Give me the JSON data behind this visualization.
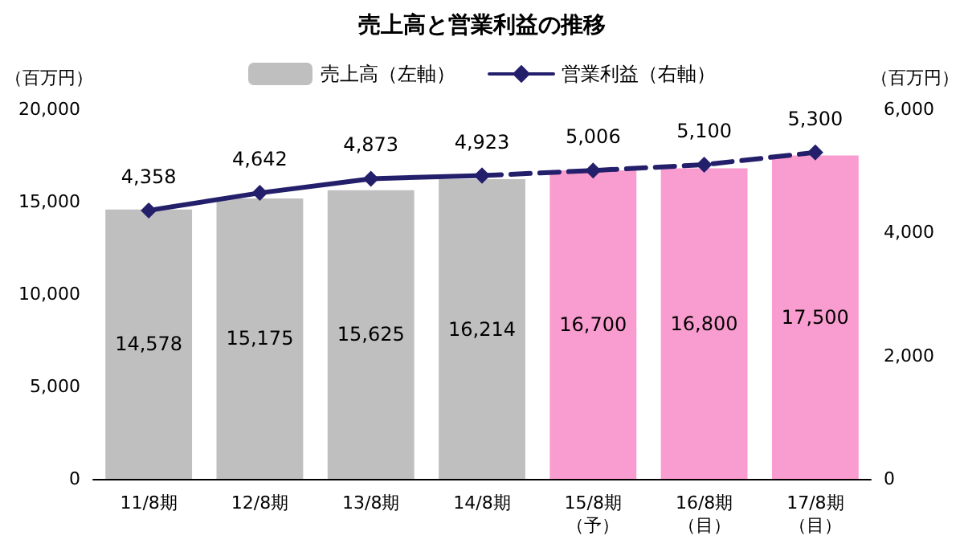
{
  "chart_data": {
    "type": "bar",
    "title": "売上高と営業利益の推移",
    "ylabel": "（百万円）",
    "y2label": "（百万円）",
    "categories": [
      "11/8期",
      "12/8期",
      "13/8期",
      "14/8期",
      "15/8期（予）",
      "16/8期（目）",
      "17/8期（目）"
    ],
    "series": [
      {
        "name": "売上高（左軸）",
        "color": "#bfbfbf",
        "colors": [
          "#bfbfbf",
          "#bfbfbf",
          "#bfbfbf",
          "#bfbfbf",
          "#f99ccf",
          "#f99ccf",
          "#f99ccf"
        ],
        "values": [
          14578,
          15175,
          15625,
          16214,
          16700,
          16800,
          17500
        ],
        "value_labels": [
          "14,578",
          "15,175",
          "15,625",
          "16,214",
          "16,700",
          "16,800",
          "17,500"
        ]
      },
      {
        "name": "営業利益（右軸）",
        "type": "line",
        "axis": "y2",
        "color": "#241f6b",
        "line_style": "solid",
        "marker": "diamond",
        "values": [
          4358,
          4642,
          4873,
          4923,
          null,
          null,
          null
        ],
        "value_labels": [
          "4,358",
          "4,642",
          "4,873",
          "4,923",
          null,
          null,
          null
        ]
      },
      {
        "type": "line",
        "axis": "y2",
        "color": "#241f6b",
        "line_style": "dashed",
        "marker": "diamond",
        "values": [
          null,
          null,
          null,
          4923,
          5006,
          5100,
          5300
        ],
        "value_labels": [
          null,
          null,
          null,
          null,
          "5,006",
          "5,100",
          "5,300"
        ]
      }
    ],
    "ylim": [
      0,
      20000
    ],
    "yticks": [
      {
        "value": 0,
        "label": "0"
      },
      {
        "value": 5000,
        "label": "5,000"
      },
      {
        "value": 10000,
        "label": "10,000"
      },
      {
        "value": 15000,
        "label": "15,000"
      },
      {
        "value": 20000,
        "label": "20,000"
      }
    ],
    "y2lim": [
      0,
      6000
    ],
    "y2ticks": [
      {
        "value": 0,
        "label": "0"
      },
      {
        "value": 2000,
        "label": "2,000"
      },
      {
        "value": 4000,
        "label": "4,000"
      },
      {
        "value": 6000,
        "label": "6,000"
      }
    ],
    "grid": false,
    "legend": "top"
  }
}
